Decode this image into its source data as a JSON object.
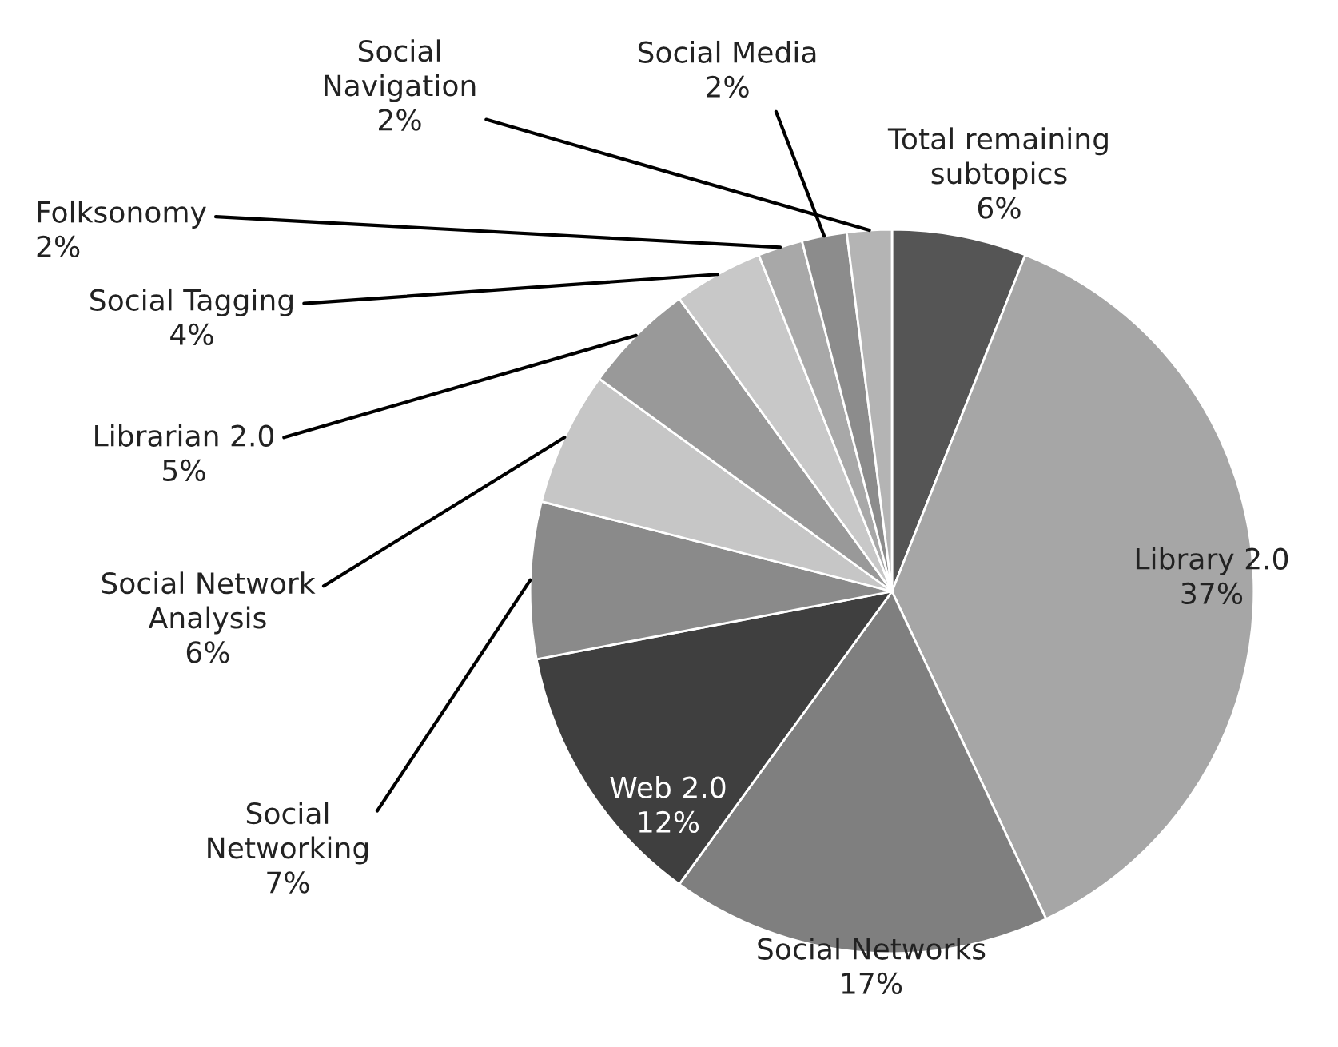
{
  "chart_data": {
    "type": "pie",
    "categories": [
      "Total remaining subtopics",
      "Library 2.0",
      "Social Networks",
      "Web 2.0",
      "Social Networking",
      "Social Network Analysis",
      "Librarian 2.0",
      "Social Tagging",
      "Folksonomy",
      "Social Media",
      "Social Navigation"
    ],
    "values": [
      6,
      37,
      17,
      12,
      7,
      6,
      5,
      4,
      2,
      2,
      2
    ],
    "value_labels": [
      "6%",
      "37%",
      "17%",
      "12%",
      "7%",
      "6%",
      "5%",
      "4%",
      "2%",
      "2%",
      "2%"
    ],
    "colors": [
      "#555555",
      "#a6a6a6",
      "#7f7f7f",
      "#3f3f3f",
      "#8a8a8a",
      "#c6c6c6",
      "#999999",
      "#c8c8c8",
      "#a8a8a8",
      "#8c8c8c",
      "#b4b4b4"
    ]
  }
}
